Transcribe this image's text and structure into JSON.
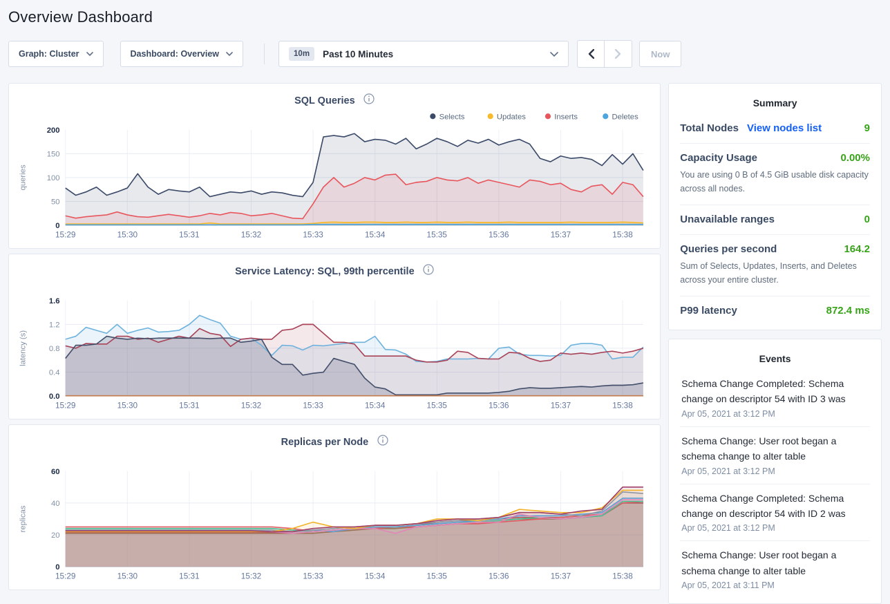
{
  "page": {
    "title": "Overview Dashboard"
  },
  "toolbar": {
    "graph_dropdown": "Graph: Cluster",
    "dashboard_dropdown": "Dashboard: Overview",
    "time_badge": "10m",
    "time_label": "Past 10 Minutes",
    "back_icon": "chevron-left",
    "forward_icon": "chevron-right",
    "now_label": "Now"
  },
  "colors": {
    "link": "#145ff5",
    "positive_value": "#37a318",
    "chart_title": "#3a4a66",
    "axis_label": "#8291a6",
    "axis_label_bold": "#1d2b46",
    "xtick_label": "#64779e"
  },
  "summary": {
    "heading": "Summary",
    "rows": [
      {
        "label": "Total Nodes",
        "link": "View nodes list",
        "value": "9"
      },
      {
        "label": "Capacity Usage",
        "value": "0.00%",
        "description": "You are using 0 B of 4.5 GiB usable disk capacity across all nodes."
      },
      {
        "label": "Unavailable ranges",
        "value": "0"
      },
      {
        "label": "Queries per second",
        "value": "164.2",
        "description": "Sum of Selects, Updates, Inserts, and Deletes across your entire cluster."
      },
      {
        "label": "P99 latency",
        "value": "872.4 ms"
      }
    ]
  },
  "events": {
    "heading": "Events",
    "items": [
      {
        "text": "Schema Change Completed: Schema change on descriptor 54 with ID 3 was",
        "time": "Apr 05, 2021 at 3:12 PM"
      },
      {
        "text": "Schema Change: User root began a schema change to alter table",
        "time": "Apr 05, 2021 at 3:12 PM"
      },
      {
        "text": "Schema Change Completed: Schema change on descriptor 54 with ID 2 was",
        "time": "Apr 05, 2021 at 3:12 PM"
      },
      {
        "text": "Schema Change: User root began a schema change to alter table",
        "time": "Apr 05, 2021 at 3:11 PM"
      }
    ]
  },
  "chart_data": [
    {
      "type": "area",
      "title": "SQL Queries",
      "ylabel": "queries",
      "ylim": [
        0,
        200
      ],
      "yticks": [
        0,
        50,
        100,
        150,
        200
      ],
      "ytick_labels": [
        "0",
        "50",
        "100",
        "150",
        "200"
      ],
      "xticklabels": [
        "15:29",
        "15:30",
        "15:31",
        "15:32",
        "15:33",
        "15:34",
        "15:35",
        "15:36",
        "15:37",
        "15:38"
      ],
      "x_span_seconds": 560,
      "grid": true,
      "legend_position": "top-right",
      "legend": [
        {
          "label": "Selects",
          "color": "#3b4a68"
        },
        {
          "label": "Updates",
          "color": "#f7ba2d"
        },
        {
          "label": "Inserts",
          "color": "#e8565d"
        },
        {
          "label": "Deletes",
          "color": "#4ea4dd"
        }
      ],
      "series": [
        {
          "name": "Selects",
          "color": "#3b4a68",
          "fill_opacity": 0.12,
          "values": [
            78,
            63,
            70,
            80,
            63,
            70,
            78,
            108,
            80,
            65,
            75,
            72,
            70,
            80,
            60,
            65,
            70,
            68,
            72,
            65,
            70,
            68,
            63,
            60,
            90,
            185,
            188,
            185,
            192,
            175,
            180,
            178,
            170,
            182,
            160,
            170,
            182,
            175,
            165,
            178,
            172,
            180,
            168,
            175,
            180,
            170,
            140,
            133,
            145,
            140,
            142,
            138,
            125,
            148,
            128,
            150,
            115
          ]
        },
        {
          "name": "Inserts",
          "color": "#e8565d",
          "fill_opacity": 0.12,
          "values": [
            20,
            15,
            18,
            20,
            22,
            28,
            22,
            18,
            17,
            20,
            23,
            20,
            17,
            20,
            25,
            22,
            27,
            25,
            20,
            22,
            25,
            20,
            15,
            14,
            45,
            80,
            100,
            80,
            88,
            100,
            95,
            105,
            107,
            85,
            90,
            92,
            100,
            95,
            93,
            100,
            88,
            95,
            90,
            85,
            80,
            95,
            92,
            85,
            88,
            75,
            70,
            82,
            85,
            65,
            90,
            85,
            60
          ]
        },
        {
          "name": "Updates",
          "color": "#f7ba2d",
          "fill_opacity": 0.3,
          "values": [
            3,
            3,
            3,
            3,
            3,
            3,
            3,
            3,
            3,
            3,
            3,
            3,
            3,
            3,
            5,
            3,
            3,
            3,
            3,
            3,
            3,
            3,
            3,
            3,
            4,
            6,
            7,
            6,
            6,
            7,
            7,
            6,
            6,
            7,
            6,
            6,
            7,
            6,
            6,
            7,
            6,
            6,
            6,
            7,
            6,
            6,
            6,
            6,
            6,
            7,
            6,
            6,
            6,
            6,
            7,
            6,
            5
          ]
        },
        {
          "name": "Deletes",
          "color": "#4ea4dd",
          "fill_opacity": 0.3,
          "values": [
            1,
            1,
            1,
            1,
            1,
            1,
            1,
            1,
            1,
            1,
            1,
            1,
            1,
            1,
            1,
            1,
            1,
            1,
            1,
            1,
            1,
            1,
            1,
            1,
            2,
            2,
            2,
            2,
            2,
            2,
            2,
            2,
            2,
            2,
            2,
            2,
            2,
            2,
            2,
            2,
            2,
            2,
            2,
            2,
            2,
            2,
            2,
            2,
            2,
            2,
            2,
            2,
            2,
            2,
            2,
            2,
            2
          ]
        }
      ]
    },
    {
      "type": "area",
      "title": "Service Latency: SQL, 99th percentile",
      "ylabel": "latency (s)",
      "ylim": [
        0,
        1.6
      ],
      "yticks": [
        0,
        0.4,
        0.8,
        1.2,
        1.6
      ],
      "ytick_labels": [
        "0.0",
        "0.4",
        "0.8",
        "1.2",
        "1.6"
      ],
      "xticklabels": [
        "15:29",
        "15:30",
        "15:31",
        "15:32",
        "15:33",
        "15:34",
        "15:35",
        "15:36",
        "15:37",
        "15:38"
      ],
      "x_span_seconds": 560,
      "grid": true,
      "legend": null,
      "series": [
        {
          "name": "node (blue)",
          "color": "#6fb3dd",
          "fill_opacity": 0.14,
          "values": [
            0.95,
            1.0,
            1.15,
            1.1,
            1.05,
            1.2,
            1.05,
            1.1,
            1.14,
            1.07,
            1.08,
            1.1,
            1.2,
            1.35,
            1.28,
            1.22,
            1.0,
            0.95,
            0.97,
            0.85,
            0.68,
            0.85,
            0.84,
            0.77,
            0.85,
            0.84,
            0.86,
            0.88,
            0.9,
            0.9,
            1.0,
            0.78,
            0.77,
            0.7,
            0.58,
            0.57,
            0.58,
            0.62,
            0.62,
            0.62,
            0.63,
            0.62,
            0.8,
            0.82,
            0.7,
            0.68,
            0.68,
            0.67,
            0.68,
            0.85,
            0.88,
            0.88,
            0.85,
            0.62,
            0.65,
            0.65,
            0.82
          ]
        },
        {
          "name": "node (maroon)",
          "color": "#a84358",
          "fill_opacity": 0.12,
          "values": [
            0.84,
            0.8,
            0.88,
            0.87,
            0.87,
            1.0,
            1.0,
            0.95,
            0.97,
            0.9,
            0.95,
            1.0,
            0.97,
            1.13,
            1.05,
            1.02,
            0.83,
            0.95,
            0.97,
            0.95,
            0.95,
            1.1,
            1.12,
            1.2,
            1.2,
            1.05,
            0.9,
            0.9,
            0.87,
            0.67,
            0.67,
            0.67,
            0.67,
            0.67,
            0.6,
            0.57,
            0.57,
            0.6,
            0.75,
            0.73,
            0.63,
            0.62,
            0.62,
            0.73,
            0.72,
            0.63,
            0.58,
            0.6,
            0.72,
            0.7,
            0.72,
            0.7,
            0.73,
            0.75,
            0.72,
            0.75,
            0.8
          ]
        },
        {
          "name": "node (navy)",
          "color": "#44506b",
          "fill_opacity": 0.2,
          "values": [
            0.63,
            0.85,
            0.85,
            0.87,
            1.0,
            0.97,
            0.95,
            0.97,
            0.96,
            0.97,
            0.97,
            0.97,
            0.97,
            0.97,
            0.96,
            0.97,
            0.97,
            0.9,
            0.92,
            0.95,
            0.65,
            0.53,
            0.53,
            0.35,
            0.38,
            0.4,
            0.63,
            0.58,
            0.53,
            0.3,
            0.15,
            0.12,
            0.02,
            0.02,
            0.02,
            0.02,
            0.02,
            0.05,
            0.05,
            0.05,
            0.05,
            0.05,
            0.06,
            0.08,
            0.12,
            0.14,
            0.13,
            0.13,
            0.14,
            0.15,
            0.16,
            0.15,
            0.17,
            0.18,
            0.18,
            0.19,
            0.22
          ]
        },
        {
          "name": "node (orange)",
          "color": "#c77c4e",
          "fill_opacity": 0,
          "values": [
            0.005,
            0.005,
            0.005,
            0.005,
            0.005,
            0.005,
            0.005,
            0.005,
            0.005,
            0.005,
            0.005,
            0.005,
            0.005,
            0.005,
            0.005,
            0.005,
            0.005,
            0.005,
            0.005,
            0.005,
            0.005,
            0.005,
            0.005,
            0.005,
            0.005,
            0.005,
            0.005,
            0.005,
            0.005,
            0.005,
            0.005,
            0.005,
            0.005,
            0.005,
            0.005,
            0.005,
            0.005,
            0.005,
            0.005,
            0.005,
            0.005,
            0.005,
            0.005,
            0.005,
            0.005,
            0.005,
            0.005,
            0.005,
            0.005,
            0.005,
            0.005,
            0.005,
            0.005,
            0.005,
            0.005,
            0.005,
            0.005
          ]
        }
      ]
    },
    {
      "type": "area",
      "title": "Replicas per Node",
      "ylabel": "replicas",
      "ylim": [
        0,
        60
      ],
      "yticks": [
        0,
        20,
        40,
        60
      ],
      "ytick_labels": [
        "0",
        "20",
        "40",
        "60"
      ],
      "xticklabels": [
        "15:29",
        "15:30",
        "15:31",
        "15:32",
        "15:33",
        "15:34",
        "15:35",
        "15:36",
        "15:37",
        "15:38"
      ],
      "x_span_seconds": 560,
      "grid": true,
      "legend": null,
      "series": [
        {
          "name": "node (brown)",
          "color": "#9b7355",
          "fill_opacity": 0.12,
          "values": [
            21,
            21,
            21,
            21,
            21,
            21,
            21,
            21,
            21,
            21,
            21,
            21,
            21,
            22,
            23,
            24,
            24,
            25,
            26,
            27,
            28,
            29,
            30,
            30,
            30,
            31,
            32,
            40,
            40
          ]
        },
        {
          "name": "node (dark red)",
          "color": "#b05a5e",
          "fill_opacity": 0.1,
          "values": [
            21.5,
            21.5,
            21.5,
            21.5,
            21.5,
            21.5,
            21.5,
            21.5,
            21.5,
            21.5,
            21.5,
            21,
            22,
            23,
            24,
            25,
            25,
            26,
            28,
            29,
            29,
            30,
            31,
            31,
            31,
            32,
            33,
            40,
            40
          ]
        },
        {
          "name": "node (salmon)",
          "color": "#e05c64",
          "fill_opacity": 0.1,
          "values": [
            25,
            25,
            25,
            25,
            25,
            25,
            25,
            25,
            25,
            25,
            25,
            24,
            22,
            23,
            24,
            24,
            25,
            25,
            26,
            27,
            27,
            28,
            29,
            30,
            31,
            32,
            33,
            40,
            41
          ]
        },
        {
          "name": "node (green)",
          "color": "#4fbd92",
          "fill_opacity": 0.1,
          "values": [
            24,
            24,
            24,
            24,
            24,
            24,
            24,
            24,
            24,
            24,
            24,
            23,
            22,
            23,
            24,
            25,
            25,
            26,
            27,
            28,
            28,
            29,
            30,
            31,
            30,
            31,
            32,
            41,
            41
          ]
        },
        {
          "name": "node (blue)",
          "color": "#5f9fd2",
          "fill_opacity": 0.1,
          "values": [
            23,
            23,
            23,
            23,
            23,
            23,
            23,
            23,
            23,
            23,
            22,
            22,
            23,
            22,
            24,
            25,
            25,
            26,
            27,
            28,
            29,
            30,
            32,
            32,
            32,
            33,
            34,
            43,
            43
          ]
        },
        {
          "name": "node (pink)",
          "color": "#e087b8",
          "fill_opacity": 0.1,
          "values": [
            22.5,
            22.5,
            22.5,
            22.5,
            22.5,
            22.5,
            22.5,
            22.5,
            22.5,
            22.5,
            22,
            21,
            22,
            23,
            24,
            24,
            21,
            25,
            26,
            27,
            28,
            28,
            33,
            31,
            30,
            31,
            33,
            42,
            42
          ]
        },
        {
          "name": "node (gray)",
          "color": "#8d95a3",
          "fill_opacity": 0.1,
          "values": [
            23,
            23,
            23,
            23,
            23,
            23,
            23,
            23,
            23,
            23,
            23,
            22,
            23,
            24,
            25,
            26,
            26,
            27,
            28,
            29,
            30,
            31,
            34,
            34,
            33,
            32,
            35,
            47,
            46
          ]
        },
        {
          "name": "node (yellow)",
          "color": "#f2b32a",
          "fill_opacity": 0.1,
          "values": [
            22,
            22,
            22,
            22,
            22,
            22,
            22,
            22,
            22,
            22,
            22,
            24,
            28,
            25,
            24,
            26,
            26,
            27,
            30,
            30,
            29,
            31,
            36,
            35,
            34,
            34,
            37,
            48,
            48
          ]
        },
        {
          "name": "node (purple)",
          "color": "#a04069",
          "fill_opacity": 0.1,
          "values": [
            22.5,
            22.5,
            22.5,
            22.5,
            22.5,
            22.5,
            22.5,
            22.5,
            22.5,
            22.5,
            22,
            22,
            24,
            25,
            25,
            26,
            26,
            27,
            29,
            30,
            30,
            31,
            34,
            34,
            33,
            35,
            36,
            50,
            50
          ]
        }
      ]
    }
  ]
}
